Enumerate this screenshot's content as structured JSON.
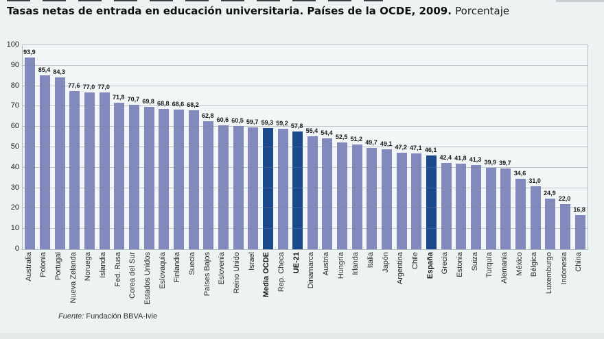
{
  "title": {
    "main": "Tasas netas de entrada en educación universitaria. Países de la OCDE, 2009.",
    "suffix": "Porcentaje"
  },
  "source": {
    "label": "Fuente:",
    "value": "Fundación BBVA-Ivie"
  },
  "chart_data": {
    "type": "bar",
    "title": "Tasas netas de entrada en educación universitaria. Países de la OCDE, 2009. Porcentaje",
    "categories": [
      "Australia",
      "Polonia",
      "Portugal",
      "Nueva Zelanda",
      "Noruega",
      "Islandia",
      "Fed. Rusa",
      "Corea del Sur",
      "Estados Unidos",
      "Eslovaquia",
      "Finlandia",
      "Suecia",
      "Países Bajos",
      "Eslovenia",
      "Reino Unido",
      "Israel",
      "Media OCDE",
      "Rep. Checa",
      "UE-21",
      "Dinamarca",
      "Austria",
      "Hungría",
      "Irlanda",
      "Italia",
      "Japón",
      "Argentina",
      "Chile",
      "España",
      "Grecia",
      "Estonia",
      "Suiza",
      "Turquía",
      "Alemania",
      "México",
      "Bélgica",
      "Luxemburgo",
      "Indonesia",
      "China"
    ],
    "values": [
      93.9,
      85.4,
      84.3,
      77.6,
      77.0,
      77.0,
      71.8,
      70.7,
      69.8,
      68.8,
      68.6,
      68.2,
      62.8,
      60.6,
      60.5,
      59.7,
      59.3,
      59.2,
      57.8,
      55.4,
      54.4,
      52.5,
      51.2,
      49.7,
      49.1,
      47.2,
      47.1,
      46.1,
      42.4,
      41.8,
      41.3,
      39.9,
      39.7,
      34.6,
      31.0,
      24.9,
      22.0,
      16.8
    ],
    "highlighted_categories": [
      "Media OCDE",
      "UE-21",
      "España"
    ],
    "xlabel": "",
    "ylabel": "",
    "ylim": [
      0,
      100
    ],
    "ytick_step": 10,
    "grid": true,
    "legend": "none",
    "value_labels": "above-bars-comma-decimal",
    "colors": {
      "bar": "#8289BD",
      "highlight_bar": "#1A4A8C",
      "grid": "#C9CED3",
      "plot_background": "#F3F6F7",
      "page_background": "#EDF2F3",
      "value_label": "#1A1A1A"
    }
  }
}
